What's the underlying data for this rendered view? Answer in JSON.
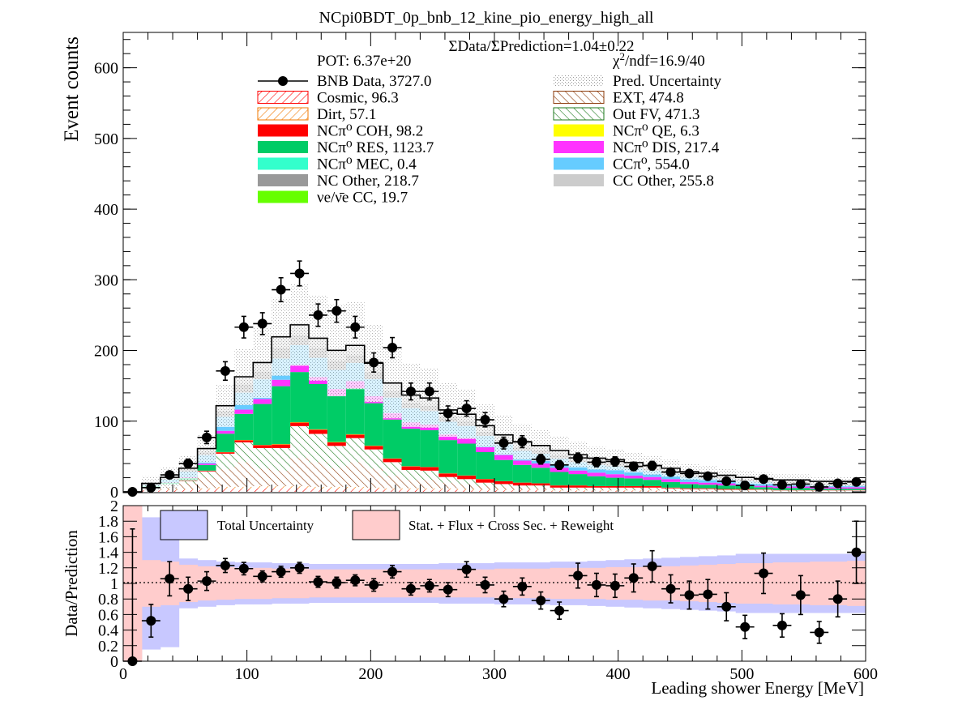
{
  "chart_data": [
    {
      "type": "bar",
      "title": "NCpi0BDT_0p_bnb_12_kine_pio_energy_high_all",
      "ylabel": "Event counts",
      "xlabel": "",
      "xlim": [
        0,
        600
      ],
      "ylim": [
        0,
        650
      ],
      "y_ticks": [
        "0",
        "100",
        "200",
        "300",
        "400",
        "500",
        "600"
      ],
      "stacked": true,
      "bin_width": 15,
      "x": [
        7.5,
        22.5,
        37.5,
        52.5,
        67.5,
        82.5,
        97.5,
        112.5,
        127.5,
        142.5,
        157.5,
        172.5,
        187.5,
        202.5,
        217.5,
        232.5,
        247.5,
        262.5,
        277.5,
        292.5,
        307.5,
        322.5,
        337.5,
        352.5,
        367.5,
        382.5,
        397.5,
        412.5,
        427.5,
        442.5,
        457.5,
        472.5,
        487.5,
        502.5,
        517.5,
        532.5,
        547.5,
        562.5,
        577.5,
        592.5
      ],
      "ratio_text": "ΣData/ΣPrediction=1.04±0.22",
      "pot_text": "POT: 6.37e+20",
      "chi2_text": "χ²/ndf=16.9/40",
      "legend": [
        {
          "label": "BNB Data, 3727.0",
          "style": "marker",
          "color": "#000000"
        },
        {
          "label": "Pred. Uncertainty",
          "style": "dots",
          "color": "#b0b0b0"
        },
        {
          "label": "Cosmic, 96.3",
          "style": "hatch",
          "color": "#ff0000"
        },
        {
          "label": "EXT, 474.8",
          "style": "hatch",
          "color": "#8b3a0a"
        },
        {
          "label": "Dirt, 57.1",
          "style": "hatch",
          "color": "#f07800"
        },
        {
          "label": "Out FV, 471.3",
          "style": "hatch",
          "color": "#1e7a1e"
        },
        {
          "label": "NCπ⁰ COH,  98.2",
          "style": "fill",
          "color": "#ff0000"
        },
        {
          "label": "NCπ⁰ QE,  6.3",
          "style": "fill",
          "color": "#ffff00"
        },
        {
          "label": "NCπ⁰ RES,  1123.7",
          "style": "fill",
          "color": "#00cc66"
        },
        {
          "label": "NCπ⁰ DIS,  217.4",
          "style": "fill",
          "color": "#ff33ff"
        },
        {
          "label": "NCπ⁰ MEC,  0.4",
          "style": "fill",
          "color": "#33ffcc"
        },
        {
          "label": "CCπ⁰, 554.0",
          "style": "fill",
          "color": "#66ccff"
        },
        {
          "label": "NC Other, 218.7",
          "style": "fill",
          "color": "#999999"
        },
        {
          "label": "CC Other, 255.8",
          "style": "fill",
          "color": "#cccccc"
        },
        {
          "label": "νe/ν̄e CC, 19.7",
          "style": "fill",
          "color": "#66ff00"
        }
      ],
      "series": [
        {
          "name": "Cosmic, 96.3",
          "color": "#ff0000",
          "hatch": true,
          "values": [
            0,
            2,
            2,
            3,
            3,
            4,
            4,
            5,
            5,
            5,
            4,
            4,
            4,
            4,
            3,
            3,
            3,
            3,
            2,
            2,
            2,
            2,
            2,
            1,
            1,
            1,
            1,
            1,
            1,
            1,
            1,
            1,
            0,
            0,
            0,
            0,
            0,
            0,
            0,
            0
          ]
        },
        {
          "name": "Dirt, 57.1",
          "color": "#f07800",
          "hatch": true,
          "values": [
            0,
            1,
            1,
            1,
            2,
            3,
            3,
            3,
            3,
            3,
            3,
            3,
            3,
            2,
            2,
            2,
            2,
            2,
            2,
            1,
            1,
            1,
            1,
            1,
            1,
            1,
            1,
            1,
            1,
            0,
            0,
            0,
            0,
            0,
            0,
            0,
            0,
            0,
            0,
            0
          ]
        },
        {
          "name": "EXT, 474.8",
          "color": "#8b3a0a",
          "hatch": true,
          "values": [
            0,
            3,
            6,
            8,
            15,
            25,
            35,
            25,
            22,
            40,
            35,
            27,
            35,
            27,
            18,
            12,
            12,
            8,
            7,
            5,
            4,
            3,
            3,
            2,
            2,
            2,
            2,
            2,
            2,
            2,
            2,
            2,
            2,
            2,
            2,
            1,
            1,
            1,
            1,
            1
          ]
        },
        {
          "name": "Out FV, 471.3",
          "color": "#1e7a1e",
          "hatch": true,
          "values": [
            0,
            1,
            2,
            3,
            9,
            22,
            28,
            29,
            32,
            45,
            40,
            31,
            34,
            27,
            19,
            14,
            13,
            8,
            7,
            5,
            4,
            3,
            3,
            2,
            2,
            2,
            2,
            2,
            2,
            2,
            1,
            1,
            1,
            1,
            1,
            1,
            1,
            1,
            1,
            1
          ]
        },
        {
          "name": "NCπ⁰ COH,  98.2",
          "color": "#ff0000",
          "values": [
            0,
            0,
            0,
            0.5,
            1,
            2,
            3,
            4,
            5,
            5,
            6,
            5,
            5,
            5,
            5,
            5,
            5,
            5,
            5,
            5,
            4,
            4,
            3,
            3,
            3,
            2,
            2,
            2,
            2,
            1,
            1,
            1,
            1,
            1,
            0.5,
            0.5,
            0.5,
            0.5,
            0.5,
            0.5
          ]
        },
        {
          "name": "NCπ⁰ QE,  6.3",
          "color": "#ffff00",
          "values": [
            0,
            0,
            0,
            0,
            0,
            0.3,
            0.3,
            0.3,
            0.5,
            0.5,
            0.5,
            0.5,
            0.5,
            0.4,
            0.3,
            0.3,
            0.2,
            0.2,
            0.2,
            0.2,
            0.1,
            0.1,
            0.1,
            0.1,
            0.1,
            0.1,
            0,
            0,
            0,
            0,
            0,
            0,
            0,
            0,
            0,
            0,
            0,
            0,
            0,
            0
          ]
        },
        {
          "name": "NCπ⁰ RES,  1123.7",
          "color": "#00cc66",
          "values": [
            0,
            1,
            2,
            4,
            8,
            26,
            37,
            58,
            82,
            71,
            64,
            65,
            65,
            60,
            55,
            53,
            52,
            47,
            45,
            38,
            30,
            25,
            22,
            19,
            16,
            14,
            12,
            11,
            9,
            8,
            6,
            5,
            5,
            4,
            3,
            3,
            3,
            2,
            2,
            2
          ]
        },
        {
          "name": "NCπ⁰ DIS,  217.4",
          "color": "#ff33ff",
          "values": [
            0,
            0,
            0.5,
            1,
            2,
            4,
            6,
            7,
            9,
            10,
            10,
            10,
            10,
            10,
            9,
            9,
            8,
            8,
            8,
            7,
            7,
            6,
            6,
            6,
            5,
            5,
            5,
            4,
            4,
            4,
            3,
            3,
            3,
            2,
            2,
            2,
            2,
            2,
            2,
            2
          ]
        },
        {
          "name": "NCπ⁰ MEC,  0.4",
          "color": "#33ffcc",
          "values": [
            0,
            0,
            0,
            0,
            0,
            0,
            0,
            0,
            0.1,
            0.1,
            0.1,
            0,
            0,
            0,
            0,
            0,
            0,
            0,
            0,
            0,
            0,
            0,
            0,
            0,
            0,
            0,
            0,
            0,
            0,
            0,
            0,
            0,
            0,
            0,
            0,
            0,
            0,
            0,
            0,
            0
          ]
        },
        {
          "name": "CCπ⁰, 554.0",
          "color": "#66ccff",
          "values": [
            0,
            2,
            4,
            8,
            12,
            20,
            24,
            28,
            30,
            28,
            27,
            27,
            26,
            24,
            22,
            20,
            19,
            18,
            17,
            16,
            15,
            14,
            14,
            13,
            12,
            11,
            11,
            10,
            9,
            8,
            7,
            6,
            6,
            5,
            5,
            4,
            4,
            3,
            3,
            3
          ]
        },
        {
          "name": "NC Other, 218.7",
          "color": "#999999",
          "values": [
            0,
            1,
            2,
            3,
            5,
            8,
            12,
            11,
            15,
            14,
            14,
            13,
            11,
            10,
            9,
            8,
            8,
            7,
            7,
            6,
            6,
            5,
            5,
            5,
            4,
            4,
            4,
            3,
            3,
            3,
            3,
            3,
            2,
            2,
            2,
            2,
            2,
            2,
            2,
            2
          ]
        },
        {
          "name": "CC Other, 255.8",
          "color": "#cccccc",
          "values": [
            0,
            1,
            1,
            2,
            4,
            7,
            10,
            12,
            15,
            14,
            13,
            14,
            13,
            12,
            11,
            10,
            10,
            9,
            9,
            8,
            7,
            7,
            6,
            6,
            6,
            5,
            5,
            5,
            4,
            4,
            4,
            4,
            3,
            3,
            3,
            3,
            3,
            3,
            3,
            3
          ]
        },
        {
          "name": "νe/ν̄e CC, 19.7",
          "color": "#66ff00",
          "values": [
            0,
            0,
            0,
            0,
            0.3,
            0.5,
            0.5,
            0.6,
            0.7,
            0.7,
            0.7,
            0.7,
            0.7,
            0.7,
            0.7,
            0.6,
            0.6,
            0.6,
            0.6,
            0.5,
            0.5,
            0.5,
            0.5,
            0.5,
            0.5,
            0.5,
            0.5,
            0.4,
            0.4,
            0.4,
            0.4,
            0.4,
            0.4,
            0.4,
            0.4,
            0.3,
            0.3,
            0.3,
            0.3,
            0.3
          ]
        },
        {
          "name": "Pred. Uncertainty",
          "type": "band",
          "color": "#b0b0b0",
          "values": [
            0,
            10,
            15,
            18,
            20,
            30,
            40,
            50,
            55,
            58,
            60,
            65,
            62,
            55,
            50,
            45,
            42,
            38,
            35,
            30,
            28,
            25,
            22,
            20,
            18,
            16,
            15,
            14,
            13,
            12,
            11,
            10,
            9,
            9,
            8,
            8,
            8,
            7,
            7,
            7
          ]
        },
        {
          "name": "BNB Data, 3727.0",
          "type": "points",
          "color": "#000000",
          "values": [
            0,
            6,
            24,
            40,
            77,
            171,
            233,
            238,
            286,
            309,
            250,
            256,
            233,
            183,
            204,
            142,
            142,
            111,
            118,
            102,
            69,
            71,
            46,
            38,
            48,
            42,
            43,
            36,
            37,
            28,
            26,
            22,
            15,
            9,
            18,
            10,
            11,
            7,
            12,
            14
          ]
        }
      ]
    },
    {
      "type": "scatter",
      "ylabel": "Data/Prediction",
      "xlabel": "Leading shower Energy [MeV]",
      "xlim": [
        0,
        600
      ],
      "ylim": [
        0,
        2
      ],
      "x_ticks": [
        "0",
        "100",
        "200",
        "300",
        "400",
        "500",
        "600"
      ],
      "y_ticks": [
        "0",
        "0.2",
        "0.4",
        "0.6",
        "0.8",
        "1",
        "1.2",
        "1.4",
        "1.6",
        "1.8",
        "2"
      ],
      "reference_line": 1,
      "legend": [
        {
          "label": "Total Uncertainty",
          "color": "#c8c8ff"
        },
        {
          "label": "Stat. + Flux + Cross Sec. + Reweight",
          "color": "#ffcccc"
        }
      ],
      "series": [
        {
          "name": "Total Uncertainty",
          "type": "band",
          "color": "#c8c8ff",
          "values": [
            1.0,
            0.85,
            0.82,
            0.32,
            0.3,
            0.28,
            0.27,
            0.27,
            0.26,
            0.26,
            0.25,
            0.25,
            0.25,
            0.25,
            0.25,
            0.25,
            0.25,
            0.26,
            0.26,
            0.26,
            0.27,
            0.27,
            0.27,
            0.28,
            0.28,
            0.29,
            0.3,
            0.31,
            0.32,
            0.33,
            0.34,
            0.35,
            0.36,
            0.38,
            0.38,
            0.38,
            0.38,
            0.38,
            0.38,
            0.38
          ]
        },
        {
          "name": "Stat. + Flux + Cross Sec. + Reweight",
          "type": "band",
          "color": "#ffcccc",
          "values": [
            1.0,
            0.3,
            0.28,
            0.24,
            0.22,
            0.21,
            0.2,
            0.2,
            0.19,
            0.19,
            0.18,
            0.18,
            0.18,
            0.18,
            0.18,
            0.18,
            0.18,
            0.18,
            0.18,
            0.18,
            0.19,
            0.19,
            0.19,
            0.2,
            0.2,
            0.2,
            0.21,
            0.21,
            0.22,
            0.22,
            0.23,
            0.24,
            0.25,
            0.26,
            0.26,
            0.27,
            0.27,
            0.28,
            0.28,
            0.29
          ]
        },
        {
          "name": "Data/Prediction",
          "type": "points",
          "color": "#000000",
          "values": [
            0.0,
            0.52,
            1.06,
            0.93,
            1.03,
            1.23,
            1.19,
            1.09,
            1.15,
            1.2,
            1.02,
            1.01,
            1.04,
            0.98,
            1.15,
            0.93,
            0.97,
            0.92,
            1.18,
            0.98,
            0.8,
            0.96,
            0.78,
            0.65,
            1.1,
            0.98,
            0.97,
            1.07,
            1.22,
            0.93,
            0.85,
            0.86,
            0.7,
            0.44,
            1.13,
            0.46,
            0.85,
            0.37,
            0.8,
            1.4
          ],
          "errors": [
            1.7,
            0.21,
            0.22,
            0.15,
            0.12,
            0.09,
            0.08,
            0.07,
            0.07,
            0.07,
            0.07,
            0.07,
            0.07,
            0.08,
            0.08,
            0.08,
            0.08,
            0.09,
            0.1,
            0.1,
            0.1,
            0.11,
            0.11,
            0.11,
            0.16,
            0.15,
            0.15,
            0.18,
            0.2,
            0.18,
            0.18,
            0.19,
            0.18,
            0.15,
            0.26,
            0.15,
            0.25,
            0.14,
            0.23,
            0.4
          ]
        }
      ]
    }
  ]
}
